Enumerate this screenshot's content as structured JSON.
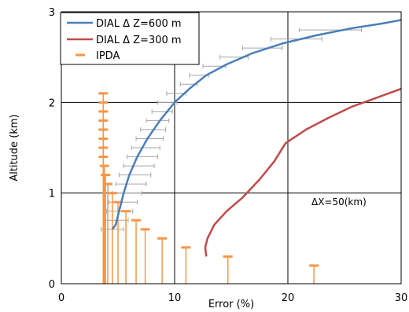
{
  "chart_data": {
    "type": "line",
    "xlabel": "Error (%)",
    "ylabel": "Altitude (km)",
    "xlim": [
      0,
      30
    ],
    "ylim": [
      0,
      3
    ],
    "x_ticks": [
      "0",
      "10",
      "20",
      "30"
    ],
    "y_ticks": [
      "0",
      "1",
      "2",
      "3"
    ],
    "grid": "major",
    "legend_position": "top-left",
    "annotation": "ΔX=50(km)",
    "colors": {
      "dial600": "#4a7ebb",
      "dial300": "#be4b48",
      "ipda": "#f79646",
      "grey_error": "#a6a6a6"
    },
    "series": [
      {
        "name": "DIAL  Δ Z=600 m",
        "style": "line",
        "color": "#4a7ebb",
        "x": [
          4.5,
          4.8,
          5.1,
          5.5,
          6.0,
          6.7,
          7.6,
          8.7,
          10.0,
          11.3,
          12.8,
          14.6,
          16.8,
          19.5,
          22.5,
          25.7,
          28.3,
          30.0
        ],
        "y": [
          0.6,
          0.65,
          0.8,
          1.0,
          1.2,
          1.4,
          1.6,
          1.8,
          2.0,
          2.15,
          2.3,
          2.42,
          2.54,
          2.65,
          2.74,
          2.82,
          2.87,
          2.91
        ]
      },
      {
        "name": "DIAL  Δ Z=300 m",
        "style": "line",
        "color": "#be4b48",
        "x": [
          12.8,
          12.7,
          12.9,
          13.5,
          14.6,
          16.0,
          17.5,
          18.8,
          19.8,
          21.6,
          23.6,
          25.6,
          27.8,
          30.0
        ],
        "y": [
          0.3,
          0.4,
          0.5,
          0.65,
          0.8,
          0.95,
          1.15,
          1.35,
          1.55,
          1.7,
          1.83,
          1.95,
          2.05,
          2.15
        ]
      },
      {
        "name": "IPDA",
        "style": "error-bars",
        "color": "#f79646",
        "x": [
          3.7,
          3.7,
          3.7,
          3.7,
          3.7,
          3.7,
          3.7,
          3.7,
          3.8,
          3.9,
          4.1,
          4.5,
          5.0,
          5.7,
          6.6,
          7.4,
          8.9,
          11.0,
          14.7,
          22.3
        ],
        "y": [
          2.1,
          2.0,
          1.9,
          1.8,
          1.7,
          1.6,
          1.5,
          1.4,
          1.3,
          1.2,
          1.1,
          1.0,
          0.9,
          0.8,
          0.7,
          0.6,
          0.5,
          0.4,
          0.3,
          0.2
        ]
      },
      {
        "style": "error-bars",
        "color": "#a6a6a6",
        "y": [
          0.6,
          0.7,
          0.8,
          0.9,
          1.0,
          1.1,
          1.2,
          1.3,
          1.4,
          1.5,
          1.6,
          1.7,
          1.8,
          1.9,
          2.0,
          2.1,
          2.2,
          2.3,
          2.4,
          2.5,
          2.6,
          2.7,
          2.8
        ],
        "x_low": [
          3.5,
          3.8,
          4.0,
          4.2,
          4.5,
          4.8,
          5.1,
          5.5,
          5.8,
          6.2,
          6.6,
          7.0,
          7.5,
          8.0,
          8.5,
          9.3,
          10.5,
          11.3,
          12.5,
          14.0,
          16.0,
          18.5,
          21.0
        ],
        "x_high": [
          5.5,
          5.9,
          6.3,
          6.7,
          7.1,
          7.5,
          7.9,
          8.2,
          8.5,
          8.7,
          9.0,
          9.2,
          9.5,
          9.8,
          10.2,
          11.0,
          12.0,
          13.0,
          14.5,
          16.5,
          19.5,
          23.0,
          26.5
        ]
      }
    ]
  }
}
